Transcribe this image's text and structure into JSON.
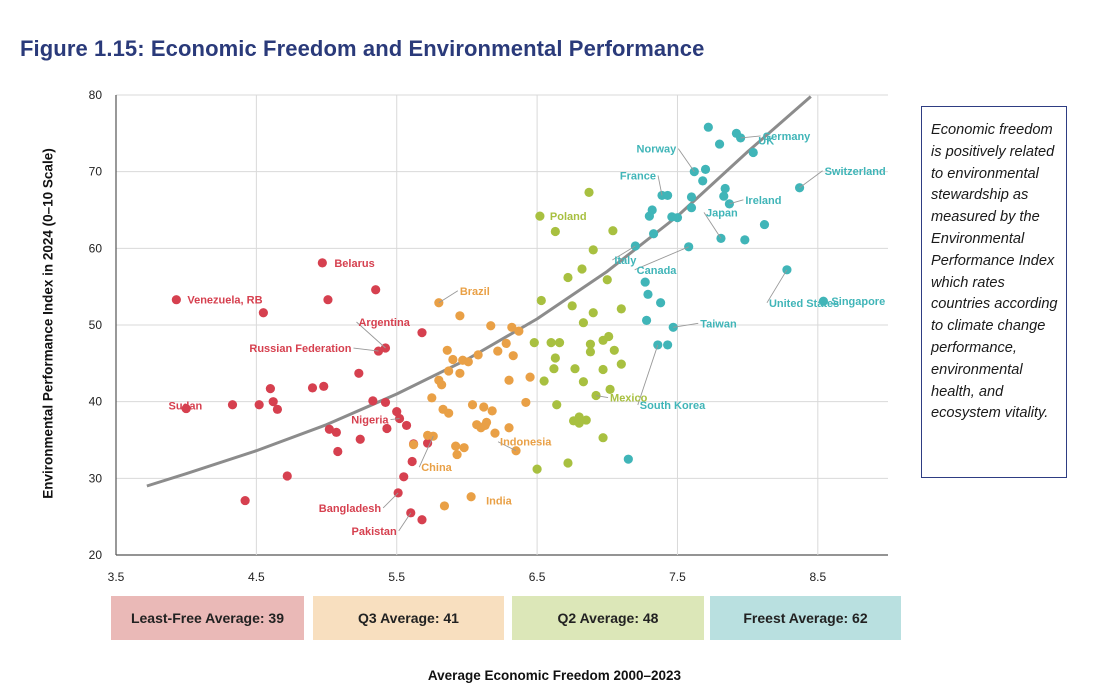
{
  "title": "Figure 1.15: Economic Freedom and Environmental Performance",
  "callout": "Economic freedom is positively related to environmental stewardship as measured by the Environmental Performance Index which rates countries according to climate change performance, environmental health, and ecosystem vitality.",
  "quartiles": [
    {
      "label": "Least-Free Average: 39",
      "color": "#eab9b7"
    },
    {
      "label": "Q3 Average: 41",
      "color": "#f8dfbf"
    },
    {
      "label": "Q2 Average: 48",
      "color": "#dce7b8"
    },
    {
      "label": "Freest Average: 62",
      "color": "#b9e0e0"
    }
  ],
  "chart_data": {
    "type": "scatter",
    "title": "Figure 1.15: Economic Freedom and Environmental Performance",
    "xlabel": "Average Economic Freedom 2000–2023",
    "ylabel": "Environmental Performance Index in 2024 (0–10 Scale)",
    "xlim": [
      3.5,
      9.0
    ],
    "ylim": [
      20,
      80
    ],
    "xticks": [
      "3.5",
      "4.5",
      "5.5",
      "6.5",
      "7.5",
      "8.5"
    ],
    "yticks": [
      "20",
      "30",
      "40",
      "50",
      "60",
      "70",
      "80"
    ],
    "grid": true,
    "trendline": [
      [
        3.72,
        29.0
      ],
      [
        4.0,
        30.6
      ],
      [
        4.5,
        33.6
      ],
      [
        5.0,
        37.0
      ],
      [
        5.5,
        41.0
      ],
      [
        6.0,
        45.5
      ],
      [
        6.5,
        50.8
      ],
      [
        7.0,
        57.0
      ],
      [
        7.5,
        64.2
      ],
      [
        8.0,
        72.6
      ],
      [
        8.45,
        79.8
      ]
    ],
    "series": [
      {
        "name": "Least-Free",
        "color": "#d6404f",
        "points": [
          [
            3.93,
            53.3
          ],
          [
            4.0,
            39.1
          ],
          [
            4.33,
            39.6
          ],
          [
            4.42,
            27.1
          ],
          [
            4.52,
            39.6
          ],
          [
            4.55,
            51.6
          ],
          [
            4.6,
            41.7
          ],
          [
            4.62,
            40.0
          ],
          [
            4.65,
            39.0
          ],
          [
            4.72,
            30.3
          ],
          [
            4.9,
            41.8
          ],
          [
            4.97,
            58.1
          ],
          [
            4.98,
            42.0
          ],
          [
            5.01,
            53.3
          ],
          [
            5.02,
            36.4
          ],
          [
            5.07,
            36.0
          ],
          [
            5.08,
            33.5
          ],
          [
            5.23,
            43.7
          ],
          [
            5.24,
            35.1
          ],
          [
            5.33,
            40.1
          ],
          [
            5.35,
            54.6
          ],
          [
            5.37,
            46.6
          ],
          [
            5.42,
            47.0
          ],
          [
            5.42,
            39.9
          ],
          [
            5.43,
            36.5
          ],
          [
            5.5,
            38.7
          ],
          [
            5.51,
            28.1
          ],
          [
            5.52,
            37.8
          ],
          [
            5.55,
            30.2
          ],
          [
            5.57,
            36.9
          ],
          [
            5.6,
            25.5
          ],
          [
            5.61,
            32.2
          ],
          [
            5.62,
            34.5
          ],
          [
            5.68,
            24.6
          ],
          [
            5.72,
            34.6
          ],
          [
            5.68,
            49.0
          ]
        ]
      },
      {
        "name": "Q3",
        "color": "#e9a046",
        "points": [
          [
            5.72,
            35.6
          ],
          [
            5.75,
            40.5
          ],
          [
            5.8,
            52.9
          ],
          [
            5.8,
            42.8
          ],
          [
            5.82,
            42.2
          ],
          [
            5.84,
            26.4
          ],
          [
            5.83,
            39.0
          ],
          [
            5.86,
            46.7
          ],
          [
            5.87,
            44.0
          ],
          [
            5.87,
            38.5
          ],
          [
            5.9,
            45.5
          ],
          [
            5.92,
            34.2
          ],
          [
            5.93,
            33.1
          ],
          [
            5.95,
            51.2
          ],
          [
            5.95,
            43.7
          ],
          [
            5.97,
            45.4
          ],
          [
            5.98,
            34.0
          ],
          [
            6.01,
            45.2
          ],
          [
            6.03,
            27.6
          ],
          [
            6.04,
            39.6
          ],
          [
            6.07,
            37.0
          ],
          [
            6.08,
            46.1
          ],
          [
            6.1,
            36.6
          ],
          [
            6.12,
            39.3
          ],
          [
            6.13,
            36.9
          ],
          [
            6.14,
            37.3
          ],
          [
            6.17,
            49.9
          ],
          [
            6.18,
            38.8
          ],
          [
            6.2,
            35.9
          ],
          [
            6.22,
            46.6
          ],
          [
            6.28,
            47.6
          ],
          [
            6.3,
            36.6
          ],
          [
            6.3,
            42.8
          ],
          [
            6.32,
            49.7
          ],
          [
            6.33,
            46.0
          ],
          [
            6.35,
            33.6
          ],
          [
            6.37,
            49.2
          ],
          [
            6.42,
            39.9
          ],
          [
            6.45,
            43.2
          ],
          [
            5.62,
            34.4
          ],
          [
            5.76,
            35.5
          ]
        ]
      },
      {
        "name": "Q2",
        "color": "#a8c040",
        "points": [
          [
            6.48,
            47.7
          ],
          [
            6.5,
            31.2
          ],
          [
            6.52,
            64.2
          ],
          [
            6.53,
            53.2
          ],
          [
            6.55,
            42.7
          ],
          [
            6.6,
            47.7
          ],
          [
            6.63,
            62.2
          ],
          [
            6.63,
            45.7
          ],
          [
            6.62,
            44.3
          ],
          [
            6.64,
            39.6
          ],
          [
            6.66,
            47.7
          ],
          [
            6.72,
            56.2
          ],
          [
            6.72,
            32.0
          ],
          [
            6.75,
            52.5
          ],
          [
            6.76,
            37.5
          ],
          [
            6.77,
            44.3
          ],
          [
            6.8,
            38.0
          ],
          [
            6.82,
            57.3
          ],
          [
            6.83,
            50.3
          ],
          [
            6.83,
            42.6
          ],
          [
            6.85,
            37.6
          ],
          [
            6.87,
            67.3
          ],
          [
            6.88,
            47.5
          ],
          [
            6.88,
            46.5
          ],
          [
            6.9,
            59.8
          ],
          [
            6.9,
            51.6
          ],
          [
            6.92,
            40.8
          ],
          [
            6.97,
            35.3
          ],
          [
            6.97,
            48.0
          ],
          [
            6.97,
            44.2
          ],
          [
            7.0,
            55.9
          ],
          [
            7.01,
            48.5
          ],
          [
            7.02,
            41.6
          ],
          [
            7.04,
            62.3
          ],
          [
            7.05,
            46.7
          ],
          [
            7.1,
            44.9
          ],
          [
            7.1,
            52.1
          ],
          [
            6.8,
            37.2
          ]
        ]
      },
      {
        "name": "Freest",
        "color": "#40b5b8",
        "points": [
          [
            7.15,
            32.5
          ],
          [
            7.2,
            60.3
          ],
          [
            7.27,
            55.6
          ],
          [
            7.28,
            50.6
          ],
          [
            7.29,
            54.0
          ],
          [
            7.3,
            64.2
          ],
          [
            7.32,
            65.0
          ],
          [
            7.33,
            61.9
          ],
          [
            7.36,
            47.4
          ],
          [
            7.38,
            52.9
          ],
          [
            7.39,
            66.9
          ],
          [
            7.43,
            47.4
          ],
          [
            7.43,
            66.9
          ],
          [
            7.46,
            64.1
          ],
          [
            7.47,
            49.7
          ],
          [
            7.5,
            64.0
          ],
          [
            7.58,
            60.2
          ],
          [
            7.6,
            65.3
          ],
          [
            7.6,
            66.7
          ],
          [
            7.62,
            70.0
          ],
          [
            7.68,
            68.8
          ],
          [
            7.7,
            70.3
          ],
          [
            7.72,
            75.8
          ],
          [
            7.8,
            73.6
          ],
          [
            7.81,
            61.3
          ],
          [
            7.83,
            66.8
          ],
          [
            7.84,
            67.8
          ],
          [
            7.87,
            65.8
          ],
          [
            7.92,
            75.0
          ],
          [
            7.95,
            74.4
          ],
          [
            7.98,
            61.1
          ],
          [
            8.04,
            72.5
          ],
          [
            8.12,
            63.1
          ],
          [
            8.28,
            57.2
          ],
          [
            8.37,
            67.9
          ],
          [
            8.54,
            53.1
          ]
        ]
      }
    ],
    "annotations": [
      {
        "text": "Germany",
        "x": 7.95,
        "y": 74.4,
        "color": "#40b5b8"
      },
      {
        "text": "Norway",
        "x": 7.62,
        "y": 70.0,
        "color": "#40b5b8"
      },
      {
        "text": "UK",
        "x": 8.04,
        "y": 72.5,
        "color": "#40b5b8"
      },
      {
        "text": "Switzerland",
        "x": 8.37,
        "y": 67.9,
        "color": "#40b5b8"
      },
      {
        "text": "France",
        "x": 7.39,
        "y": 66.9,
        "color": "#40b5b8"
      },
      {
        "text": "Ireland",
        "x": 7.87,
        "y": 65.8,
        "color": "#40b5b8"
      },
      {
        "text": "Japan",
        "x": 7.81,
        "y": 61.3,
        "color": "#40b5b8"
      },
      {
        "text": "Canada",
        "x": 7.58,
        "y": 60.2,
        "color": "#40b5b8"
      },
      {
        "text": "United States",
        "x": 8.28,
        "y": 57.2,
        "color": "#40b5b8"
      },
      {
        "text": "Singapore",
        "x": 8.54,
        "y": 53.1,
        "color": "#40b5b8"
      },
      {
        "text": "Taiwan",
        "x": 7.47,
        "y": 49.7,
        "color": "#40b5b8"
      },
      {
        "text": "South Korea",
        "x": 7.36,
        "y": 47.4,
        "color": "#40b5b8"
      },
      {
        "text": "Poland",
        "x": 6.52,
        "y": 64.2,
        "color": "#a8c040"
      },
      {
        "text": "Italy",
        "x": 7.2,
        "y": 60.3,
        "color": "#40b5b8"
      },
      {
        "text": "Mexico",
        "x": 6.92,
        "y": 40.8,
        "color": "#a8c040"
      },
      {
        "text": "Indonesia",
        "x": 6.35,
        "y": 33.6,
        "color": "#e9a046"
      },
      {
        "text": "Brazil",
        "x": 5.8,
        "y": 52.9,
        "color": "#e9a046"
      },
      {
        "text": "China",
        "x": 5.76,
        "y": 35.5,
        "color": "#e9a046"
      },
      {
        "text": "India",
        "x": 6.03,
        "y": 27.6,
        "color": "#e9a046"
      },
      {
        "text": "Belarus",
        "x": 4.97,
        "y": 58.1,
        "color": "#d6404f"
      },
      {
        "text": "Venezuela, RB",
        "x": 3.93,
        "y": 53.3,
        "color": "#d6404f"
      },
      {
        "text": "Argentina",
        "x": 5.42,
        "y": 47.0,
        "color": "#d6404f"
      },
      {
        "text": "Russian Federation",
        "x": 5.37,
        "y": 46.6,
        "color": "#d6404f"
      },
      {
        "text": "Sudan",
        "x": 4.0,
        "y": 39.1,
        "color": "#d6404f"
      },
      {
        "text": "Nigeria",
        "x": 5.52,
        "y": 37.8,
        "color": "#d6404f"
      },
      {
        "text": "Bangladesh",
        "x": 5.51,
        "y": 28.1,
        "color": "#d6404f"
      },
      {
        "text": "Pakistan",
        "x": 5.6,
        "y": 25.5,
        "color": "#d6404f"
      }
    ]
  }
}
